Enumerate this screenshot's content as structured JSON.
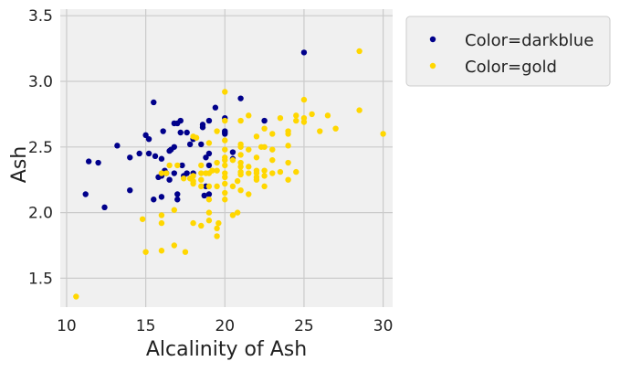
{
  "chart_data": {
    "type": "scatter",
    "xlabel": "Alcalinity of Ash",
    "ylabel": "Ash",
    "xlim": [
      9.6,
      30.6
    ],
    "ylim": [
      1.28,
      3.55
    ],
    "xticks": [
      10,
      15,
      20,
      25,
      30
    ],
    "yticks": [
      1.5,
      2.0,
      2.5,
      3.0,
      3.5
    ],
    "xtick_labels": [
      "10",
      "15",
      "20",
      "25",
      "30"
    ],
    "ytick_labels": [
      "1.5",
      "2.0",
      "2.5",
      "3.0",
      "3.5"
    ],
    "grid": true,
    "legend_placement": "outside-top-right",
    "background": "#f0f0f0",
    "series": [
      {
        "name": "Color=darkblue",
        "color": "#00008b",
        "points": [
          [
            11.2,
            2.14
          ],
          [
            11.4,
            2.39
          ],
          [
            12,
            2.38
          ],
          [
            12.4,
            2.04
          ],
          [
            13.2,
            2.51
          ],
          [
            14,
            2.17
          ],
          [
            14,
            2.42
          ],
          [
            14.6,
            2.45
          ],
          [
            15.2,
            2.45
          ],
          [
            15,
            2.59
          ],
          [
            15.2,
            2.56
          ],
          [
            15.5,
            2.84
          ],
          [
            15.6,
            2.43
          ],
          [
            15.5,
            2.1
          ],
          [
            16,
            2.41
          ],
          [
            16,
            2.28
          ],
          [
            16,
            2.12
          ],
          [
            16.1,
            2.62
          ],
          [
            16.2,
            2.32
          ],
          [
            16.3,
            2.3
          ],
          [
            16.5,
            2.25
          ],
          [
            16.6,
            2.48
          ],
          [
            16.8,
            2.5
          ],
          [
            16.8,
            2.68
          ],
          [
            17,
            2.14
          ],
          [
            17,
            2.1
          ],
          [
            17,
            2.68
          ],
          [
            17.2,
            2.7
          ],
          [
            17.2,
            2.61
          ],
          [
            17.3,
            2.36
          ],
          [
            17.4,
            2.28
          ],
          [
            17.6,
            2.3
          ],
          [
            17.6,
            2.61
          ],
          [
            17.8,
            2.52
          ],
          [
            18,
            2.56
          ],
          [
            18,
            2.3
          ],
          [
            18.6,
            2.67
          ],
          [
            18.6,
            2.65
          ],
          [
            18.8,
            2.42
          ],
          [
            19,
            2.36
          ],
          [
            19,
            2.7
          ],
          [
            19.4,
            2.8
          ],
          [
            19,
            2.45
          ],
          [
            20,
            2.72
          ],
          [
            20,
            2.62
          ],
          [
            20,
            2.61
          ],
          [
            20,
            2.6
          ],
          [
            20.5,
            2.41
          ],
          [
            21,
            2.87
          ],
          [
            22.5,
            2.7
          ],
          [
            25,
            3.22
          ],
          [
            18.8,
            2.2
          ],
          [
            18.7,
            2.13
          ],
          [
            19,
            2.14
          ],
          [
            18.5,
            2.52
          ],
          [
            16.5,
            2.47
          ],
          [
            20.5,
            2.46
          ],
          [
            16.8,
            2.3
          ],
          [
            15.8,
            2.27
          ]
        ]
      },
      {
        "name": "Color=gold",
        "color": "#ffd700",
        "points": [
          [
            10.6,
            1.36
          ],
          [
            14.8,
            1.95
          ],
          [
            15,
            1.7
          ],
          [
            16,
            1.71
          ],
          [
            16,
            1.92
          ],
          [
            16,
            1.98
          ],
          [
            16.8,
            1.75
          ],
          [
            16.8,
            2.02
          ],
          [
            17.5,
            1.7
          ],
          [
            18,
            1.92
          ],
          [
            18.5,
            1.9
          ],
          [
            19,
            1.94
          ],
          [
            19,
            2.0
          ],
          [
            19.5,
            1.82
          ],
          [
            19.5,
            1.88
          ],
          [
            19.6,
            1.92
          ],
          [
            20,
            2.1
          ],
          [
            20.5,
            1.98
          ],
          [
            20.8,
            2.0
          ],
          [
            21,
            2.17
          ],
          [
            16,
            2.3
          ],
          [
            16.3,
            2.3
          ],
          [
            17,
            2.36
          ],
          [
            17.4,
            2.26
          ],
          [
            18,
            2.28
          ],
          [
            18,
            2.24
          ],
          [
            18,
            2.22
          ],
          [
            18,
            2.58
          ],
          [
            18.5,
            2.3
          ],
          [
            18.5,
            2.25
          ],
          [
            18.5,
            2.36
          ],
          [
            18.5,
            2.2
          ],
          [
            19,
            2.3
          ],
          [
            19,
            2.2
          ],
          [
            19,
            2.1
          ],
          [
            19,
            2.53
          ],
          [
            19.5,
            2.38
          ],
          [
            19.5,
            2.32
          ],
          [
            19.5,
            2.2
          ],
          [
            19.5,
            2.62
          ],
          [
            20,
            2.92
          ],
          [
            20,
            2.7
          ],
          [
            20,
            2.55
          ],
          [
            20,
            2.48
          ],
          [
            20,
            2.42
          ],
          [
            20,
            2.4
          ],
          [
            20,
            2.36
          ],
          [
            20,
            2.3
          ],
          [
            20,
            2.27
          ],
          [
            20,
            2.22
          ],
          [
            20,
            2.15
          ],
          [
            20.5,
            2.4
          ],
          [
            20.5,
            2.2
          ],
          [
            21,
            2.7
          ],
          [
            21,
            2.52
          ],
          [
            21,
            2.5
          ],
          [
            21,
            2.44
          ],
          [
            21,
            2.38
          ],
          [
            21,
            2.31
          ],
          [
            21,
            2.29
          ],
          [
            21.5,
            2.74
          ],
          [
            21.5,
            2.48
          ],
          [
            21.5,
            2.35
          ],
          [
            21.5,
            2.3
          ],
          [
            21.5,
            2.14
          ],
          [
            22,
            2.58
          ],
          [
            22,
            2.42
          ],
          [
            22,
            2.32
          ],
          [
            22,
            2.3
          ],
          [
            22,
            2.27
          ],
          [
            22,
            2.25
          ],
          [
            22.5,
            2.64
          ],
          [
            22.5,
            2.5
          ],
          [
            22.5,
            2.32
          ],
          [
            22.5,
            2.2
          ],
          [
            22.5,
            2.28
          ],
          [
            23,
            2.6
          ],
          [
            23,
            2.48
          ],
          [
            23,
            2.4
          ],
          [
            23,
            2.3
          ],
          [
            23.5,
            2.72
          ],
          [
            23.5,
            2.31
          ],
          [
            24,
            2.62
          ],
          [
            24,
            2.6
          ],
          [
            24,
            2.51
          ],
          [
            24,
            2.38
          ],
          [
            24,
            2.25
          ],
          [
            24.5,
            2.74
          ],
          [
            24.5,
            2.7
          ],
          [
            24.5,
            2.31
          ],
          [
            25,
            2.86
          ],
          [
            25,
            2.69
          ],
          [
            25,
            2.72
          ],
          [
            25.5,
            2.75
          ],
          [
            26,
            2.62
          ],
          [
            26.5,
            2.74
          ],
          [
            27,
            2.64
          ],
          [
            28.5,
            3.23
          ],
          [
            28.5,
            2.78
          ],
          [
            30,
            2.6
          ],
          [
            17.8,
            2.26
          ],
          [
            18.2,
            2.57
          ],
          [
            18.8,
            2.3
          ],
          [
            19.2,
            2.32
          ],
          [
            20.8,
            2.24
          ],
          [
            21,
            2.35
          ],
          [
            22.3,
            2.5
          ],
          [
            16.5,
            2.36
          ]
        ]
      }
    ]
  }
}
